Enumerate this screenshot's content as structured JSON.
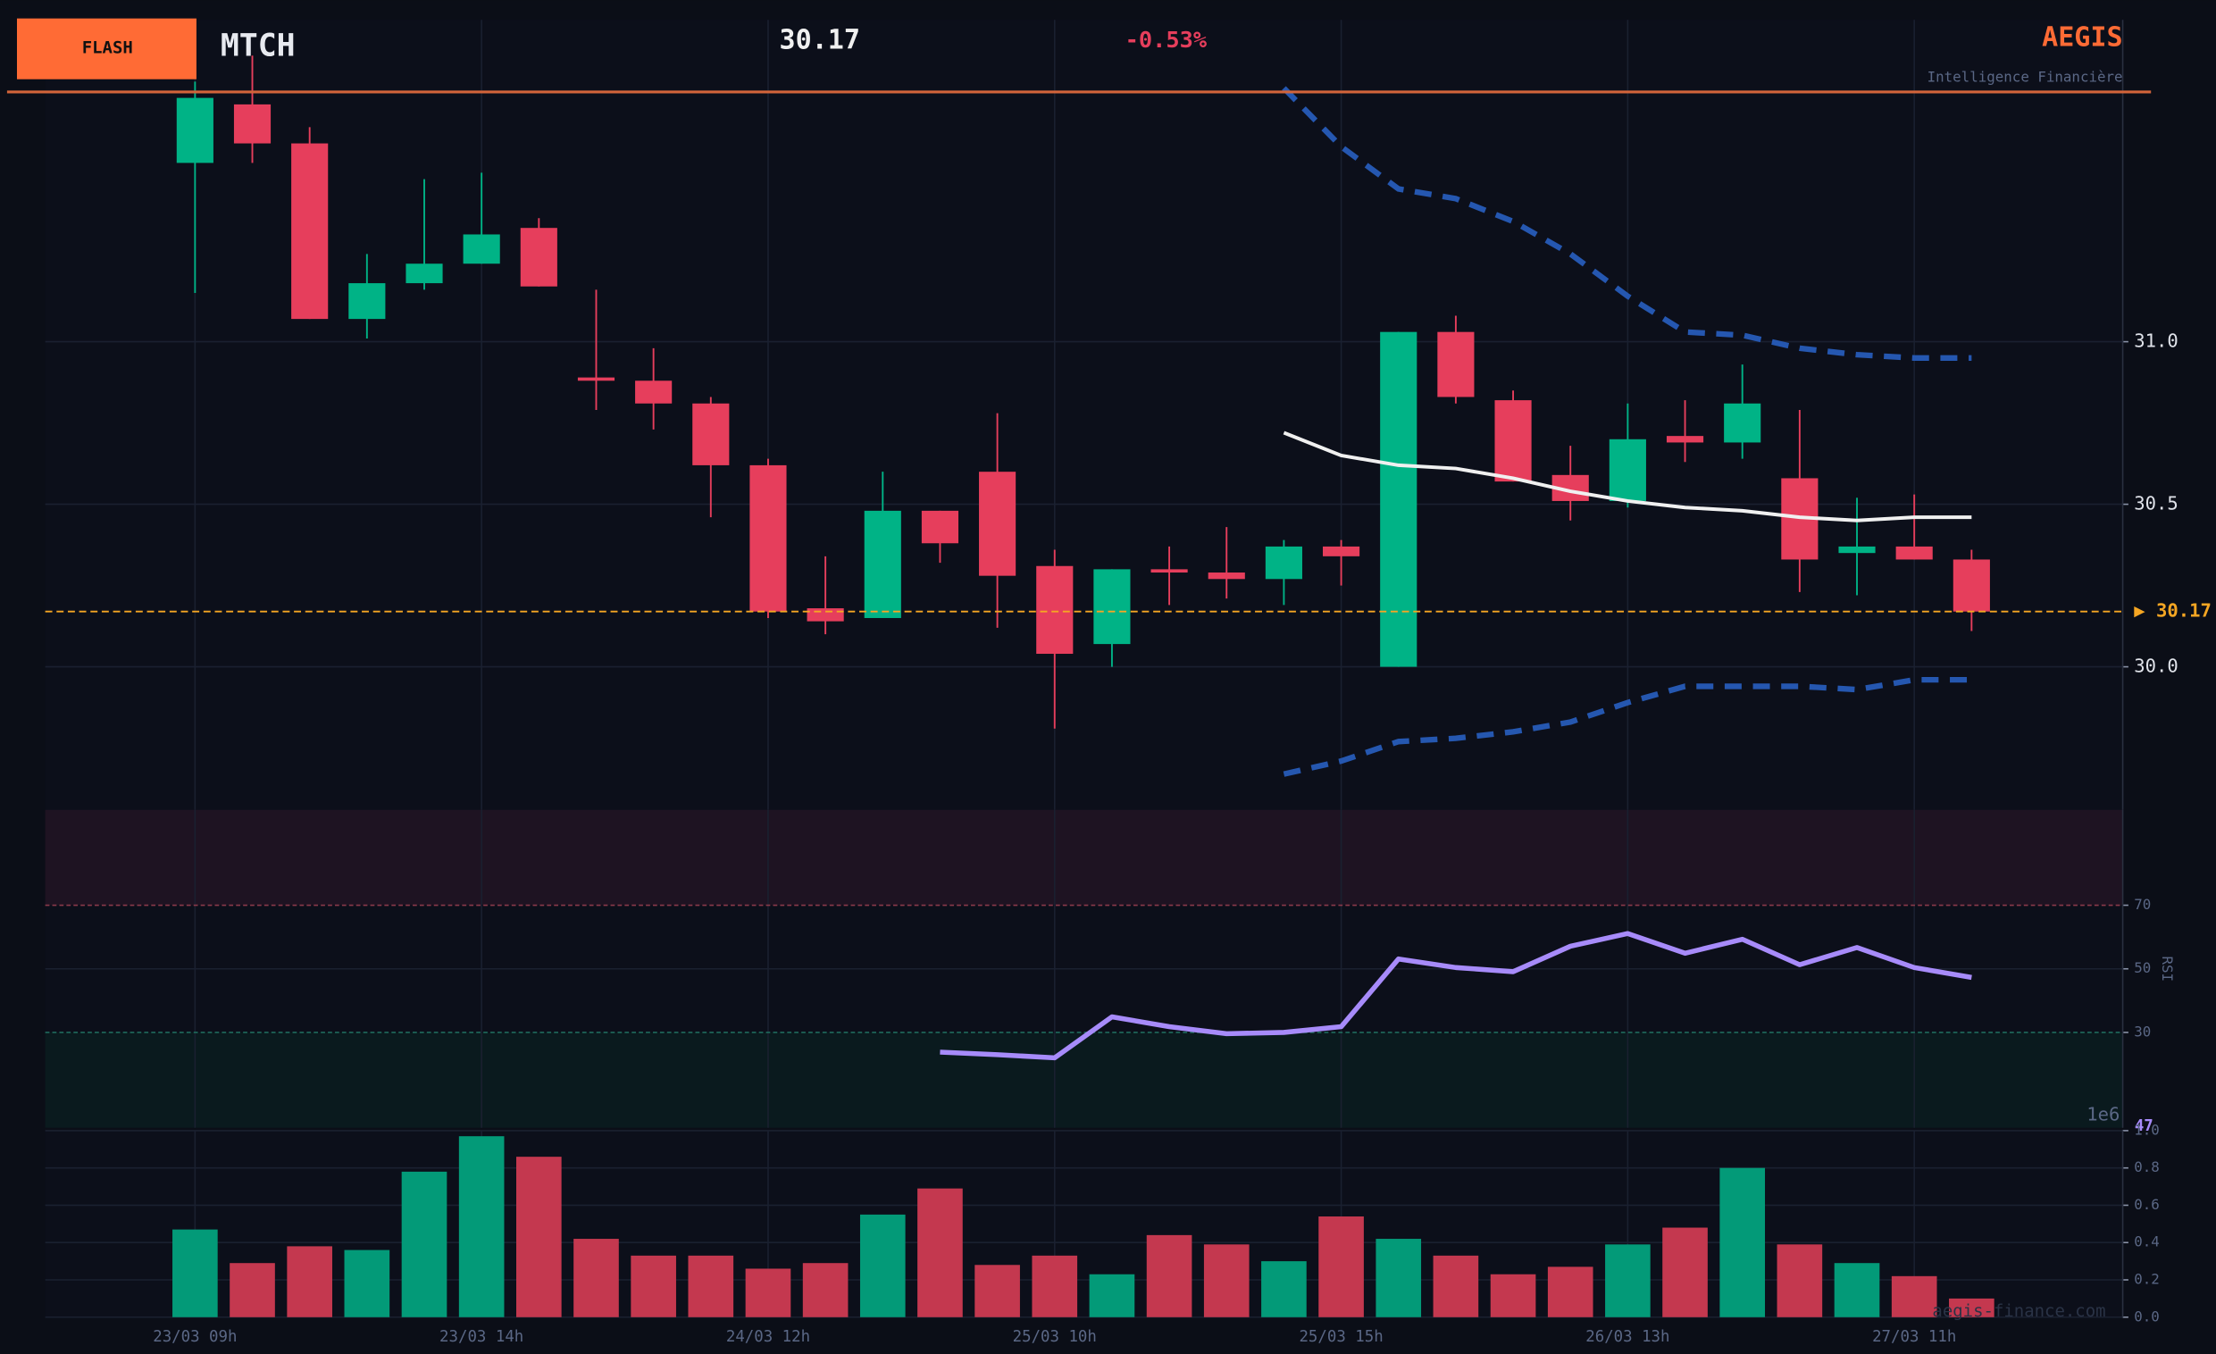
{
  "header": {
    "badge": "FLASH",
    "ticker": "MTCH",
    "price": "30.17",
    "change": "-0.53%",
    "brand": "AEGIS",
    "tagline": "Intelligence Financière"
  },
  "watermark": "aegis-finance.com",
  "chart_data": [
    {
      "type": "candlestick",
      "categories": [
        "23/03 09h",
        null,
        null,
        null,
        null,
        "23/03 14h",
        null,
        null,
        null,
        null,
        "24/03 12h",
        null,
        null,
        null,
        null,
        "25/03 10h",
        null,
        null,
        null,
        null,
        "25/03 15h",
        null,
        null,
        null,
        null,
        "26/03 13h",
        null,
        null,
        null,
        null,
        "27/03 11h",
        null
      ],
      "open": [
        31.55,
        31.73,
        31.61,
        31.07,
        31.18,
        31.24,
        31.35,
        30.89,
        30.88,
        30.81,
        30.62,
        30.18,
        30.15,
        30.48,
        30.6,
        30.31,
        30.07,
        30.3,
        30.29,
        30.27,
        30.37,
        30.0,
        31.03,
        30.82,
        30.59,
        30.51,
        30.71,
        30.69,
        30.58,
        30.35,
        30.37,
        30.33
      ],
      "high": [
        31.8,
        31.88,
        31.66,
        31.27,
        31.5,
        31.52,
        31.38,
        31.16,
        30.98,
        30.83,
        30.64,
        30.34,
        30.6,
        30.48,
        30.78,
        30.36,
        30.3,
        30.37,
        30.43,
        30.39,
        30.39,
        31.03,
        31.08,
        30.85,
        30.68,
        30.81,
        30.82,
        30.93,
        30.79,
        30.52,
        30.53,
        30.36
      ],
      "low": [
        31.15,
        31.55,
        31.07,
        31.01,
        31.16,
        31.24,
        31.17,
        30.79,
        30.73,
        30.46,
        30.15,
        30.1,
        30.15,
        30.32,
        30.12,
        29.81,
        30.0,
        30.19,
        30.21,
        30.19,
        30.25,
        30.0,
        30.81,
        30.57,
        30.45,
        30.49,
        30.63,
        30.64,
        30.23,
        30.22,
        30.33,
        30.11
      ],
      "close": [
        31.75,
        31.61,
        31.07,
        31.18,
        31.24,
        31.33,
        31.17,
        30.88,
        30.81,
        30.62,
        30.17,
        30.14,
        30.48,
        30.38,
        30.28,
        30.04,
        30.3,
        30.29,
        30.27,
        30.37,
        30.34,
        31.03,
        30.83,
        30.57,
        30.51,
        30.7,
        30.69,
        30.81,
        30.33,
        30.37,
        30.33,
        30.17
      ],
      "up_color": "#00b386",
      "down_color": "#e63e5c",
      "overlays": [
        {
          "color": "#2557b0",
          "dashed": true,
          "values": [
            null,
            null,
            null,
            null,
            null,
            null,
            null,
            null,
            null,
            null,
            null,
            null,
            null,
            null,
            null,
            null,
            null,
            null,
            null,
            31.78,
            31.6,
            31.47,
            31.44,
            31.37,
            31.27,
            31.14,
            31.03,
            31.02,
            30.98,
            30.96,
            30.95,
            30.95
          ]
        },
        {
          "color": "#f0f0f0",
          "dashed": false,
          "values": [
            null,
            null,
            null,
            null,
            null,
            null,
            null,
            null,
            null,
            null,
            null,
            null,
            null,
            null,
            null,
            null,
            null,
            null,
            null,
            30.72,
            30.65,
            30.62,
            30.61,
            30.58,
            30.54,
            30.51,
            30.49,
            30.48,
            30.46,
            30.45,
            30.46,
            30.46
          ]
        },
        {
          "color": "#2557b0",
          "dashed": true,
          "values": [
            null,
            null,
            null,
            null,
            null,
            null,
            null,
            null,
            null,
            null,
            null,
            null,
            null,
            null,
            null,
            null,
            null,
            null,
            null,
            29.67,
            29.71,
            29.77,
            29.78,
            29.8,
            29.83,
            29.89,
            29.94,
            29.94,
            29.94,
            29.93,
            29.96,
            29.96
          ]
        }
      ],
      "last_price": {
        "value": 30.17,
        "label": "▶ 30.17",
        "color": "#f5a623"
      },
      "ylim": [
        29.56,
        31.99
      ],
      "yticks": [
        {
          "value": 30,
          "label": "30.0"
        },
        30.5,
        {
          "value": 31,
          "label": "31.0"
        }
      ],
      "grid": true
    },
    {
      "type": "line",
      "ylabel": "RSI",
      "color": "#a78bfa",
      "values": [
        null,
        null,
        null,
        null,
        null,
        null,
        null,
        null,
        null,
        null,
        null,
        null,
        null,
        23.8,
        23,
        22,
        34.9,
        31.8,
        29.6,
        30,
        31.8,
        53.1,
        50.4,
        49.1,
        57.1,
        61.1,
        54.9,
        59.3,
        51.3,
        56.7,
        50.4,
        47.3
      ],
      "last_label": "47",
      "zones": [
        {
          "from": 70,
          "to": 100,
          "color": "#1e1322"
        },
        {
          "from": 0,
          "to": 30,
          "color": "#0a1a1e"
        }
      ],
      "ylim": [
        0,
        100
      ],
      "yticks": [
        30,
        50,
        70
      ],
      "grid": true
    },
    {
      "type": "bar",
      "offset_label": "1e6",
      "values": [
        0.47,
        0.29,
        0.38,
        0.36,
        0.78,
        0.97,
        0.86,
        0.42,
        0.33,
        0.33,
        0.26,
        0.29,
        0.55,
        0.69,
        0.28,
        0.33,
        0.23,
        0.44,
        0.39,
        0.3,
        0.54,
        0.42,
        0.33,
        0.23,
        0.27,
        0.39,
        0.48,
        0.8,
        0.39,
        0.29,
        0.22,
        0.1
      ],
      "up_color": "#039a78",
      "down_color": "#c4384f",
      "ylim": [
        0,
        1
      ],
      "yticks": [
        {
          "value": 0,
          "label": "0.0"
        },
        0.2,
        0.4,
        0.6,
        0.8,
        {
          "value": 1,
          "label": "1.0"
        }
      ],
      "grid": true
    }
  ]
}
